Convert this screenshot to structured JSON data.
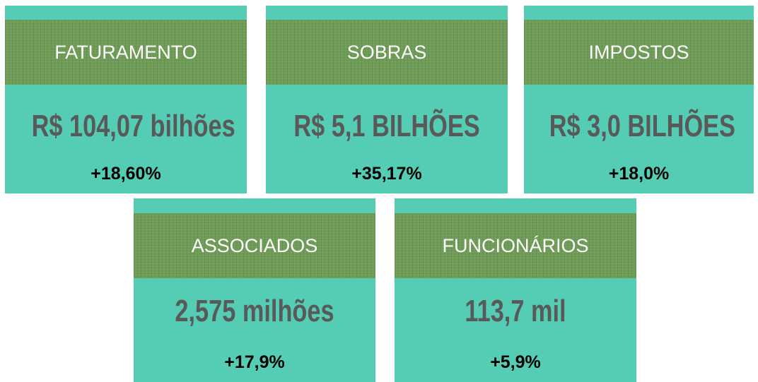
{
  "cards": [
    {
      "title": "FATURAMENTO",
      "value": "R$  104,07 bilhões",
      "change": "+18,60%"
    },
    {
      "title": "SOBRAS",
      "value": "R$ 5,1 BILHÕES",
      "change": "+35,17%"
    },
    {
      "title": "IMPOSTOS",
      "value": "R$ 3,0 BILHÕES",
      "change": "+18,0%"
    },
    {
      "title": "ASSOCIADOS",
      "value": "2,575 milhões",
      "change": "+17,9%"
    },
    {
      "title": "FUNCIONÁRIOS",
      "value": "113,7 mil",
      "change": "+5,9%"
    }
  ]
}
